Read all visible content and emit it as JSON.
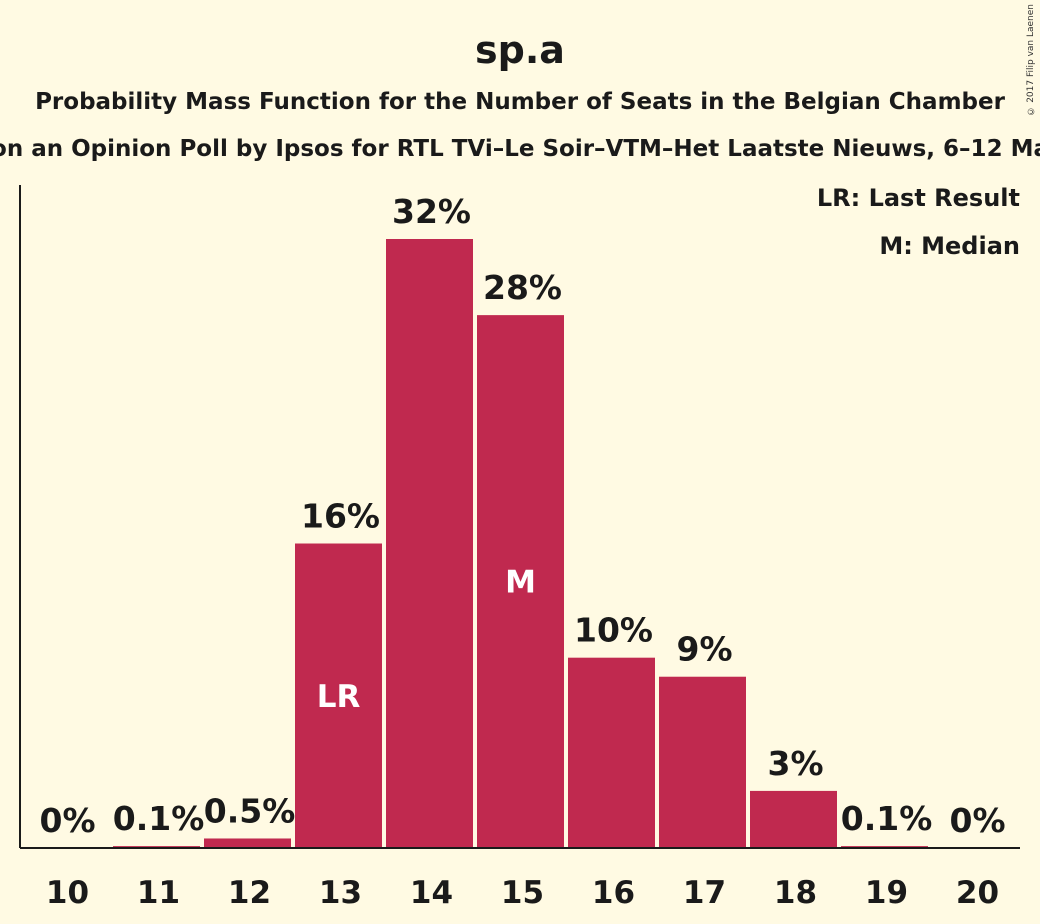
{
  "chart_data": {
    "type": "bar",
    "title": "sp.a",
    "subtitle": "Probability Mass Function for the Number of Seats in the Belgian Chamber",
    "subtitle2": "on an Opinion Poll by Ipsos for RTL TVi–Le Soir–VTM–Het Laatste Nieuws, 6–12 Ma",
    "copyright": "© 2017 Filip van Laenen",
    "legend": [
      "LR: Last Result",
      "M: Median"
    ],
    "categories": [
      "10",
      "11",
      "12",
      "13",
      "14",
      "15",
      "16",
      "17",
      "18",
      "19",
      "20"
    ],
    "values": [
      0,
      0.1,
      0.5,
      16,
      32,
      28,
      10,
      9,
      3,
      0.1,
      0
    ],
    "labels": [
      "0%",
      "0.1%",
      "0.5%",
      "16%",
      "32%",
      "28%",
      "10%",
      "9%",
      "3%",
      "0.1%",
      "0%"
    ],
    "markers": [
      {
        "category": "13",
        "text": "LR"
      },
      {
        "category": "15",
        "text": "M"
      }
    ],
    "ylim": [
      0,
      32.14
    ],
    "bar_color": "#c0294f",
    "grid": false,
    "legend_position": "top-right"
  }
}
